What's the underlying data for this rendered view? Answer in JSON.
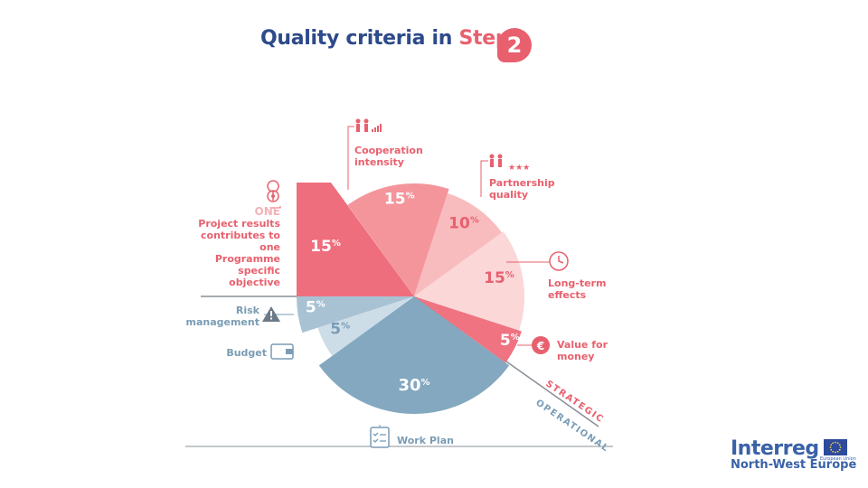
{
  "title": {
    "part1": "Quality criteria in",
    "part2": "Step",
    "badge": "2"
  },
  "colors": {
    "pink_dark": "#ee6e7d",
    "pink_mid": "#f4959c",
    "pink_light": "#f8bcbf",
    "pink_pale": "#fbd7d8",
    "pink_value": "#ef7380",
    "blue_light": "#a8c2d4",
    "blue_pale": "#cddde8",
    "blue_main": "#83a8c0",
    "text_pink": "#e8606e",
    "text_blue": "#7a9cb5"
  },
  "chart_data": {
    "type": "pie",
    "title": "Quality criteria in Step 2",
    "slices": [
      {
        "label": "Project results contributes to one Programme specific objective",
        "value": 15,
        "display": "15",
        "group": "STRATEGIC"
      },
      {
        "label": "Cooperation intensity",
        "value": 15,
        "display": "15",
        "group": "STRATEGIC"
      },
      {
        "label": "Partnership quality",
        "value": 10,
        "display": "10",
        "group": "STRATEGIC"
      },
      {
        "label": "Long-term effects",
        "value": 15,
        "display": "15",
        "group": "STRATEGIC"
      },
      {
        "label": "Value for money",
        "value": 5,
        "display": "5",
        "group": "STRATEGIC"
      },
      {
        "label": "Work Plan",
        "value": 30,
        "display": "30",
        "group": "OPERATIONAL"
      },
      {
        "label": "Budget",
        "value": 5,
        "display": "5",
        "group": "OPERATIONAL"
      },
      {
        "label": "Risk management",
        "value": 5,
        "display": "5",
        "group": "OPERATIONAL"
      }
    ],
    "percent_sign": "%",
    "groups": [
      "STRATEGIC",
      "OPERATIONAL"
    ]
  },
  "labels": {
    "cooperation": [
      "Cooperation",
      "intensity"
    ],
    "partnership": [
      "Partnership",
      "quality"
    ],
    "one": "ONE",
    "project": [
      "Project results",
      "contributes to one",
      "Programme",
      "specific",
      "objective"
    ],
    "longterm": [
      "Long-term",
      "effects"
    ],
    "value": [
      "Value for",
      "money"
    ],
    "risk": [
      "Risk",
      "management"
    ],
    "budget": "Budget",
    "workplan": "Work Plan",
    "strategic": "STRATEGIC",
    "operational": "OPERATIONAL"
  },
  "logo": {
    "brand": "Interreg",
    "region": "North-West Europe",
    "eu_caption": "European Union"
  },
  "icons": [
    "handshake-signal-icon",
    "handshake-stars-icon",
    "location-pin-icon",
    "clock-icon",
    "euro-icon",
    "warning-icon",
    "wallet-icon",
    "checklist-icon",
    "eu-flag-icon"
  ]
}
